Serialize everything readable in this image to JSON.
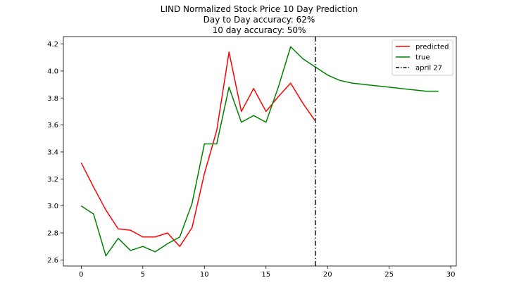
{
  "chart_data": {
    "type": "line",
    "title": [
      "LIND Normalized Stock Price 10 Day Prediction",
      "Day to Day accuracy: 62%",
      "10 day accuracy: 50%"
    ],
    "xlabel": "",
    "ylabel": "",
    "xlim": [
      -1.45,
      30.45
    ],
    "ylim": [
      2.555,
      4.255
    ],
    "xticks": [
      0,
      5,
      10,
      15,
      20,
      25,
      30
    ],
    "yticks": [
      2.6,
      2.8,
      3.0,
      3.2,
      3.4,
      3.6,
      3.8,
      4.0,
      4.2
    ],
    "ytick_labels": [
      "2.6",
      "2.8",
      "3.0",
      "3.2",
      "3.4",
      "3.6",
      "3.8",
      "4.0",
      "4.2"
    ],
    "legend_position": "upper right",
    "series": [
      {
        "name": "predicted",
        "color": "#ff0000",
        "x": [
          0,
          1,
          2,
          3,
          4,
          5,
          6,
          7,
          8,
          9,
          10,
          11,
          12,
          13,
          14,
          15,
          16,
          17,
          18,
          19
        ],
        "y": [
          3.32,
          3.14,
          2.97,
          2.83,
          2.82,
          2.77,
          2.77,
          2.8,
          2.7,
          2.84,
          3.24,
          3.56,
          4.14,
          3.7,
          3.87,
          3.7,
          3.81,
          3.91,
          3.76,
          3.63
        ]
      },
      {
        "name": "true",
        "color": "#008000",
        "x": [
          0,
          1,
          2,
          3,
          4,
          5,
          6,
          7,
          8,
          9,
          10,
          11,
          12,
          13,
          14,
          15,
          16,
          17,
          18,
          19,
          20,
          21,
          22,
          23,
          24,
          25,
          26,
          27,
          28,
          29
        ],
        "y": [
          3.0,
          2.94,
          2.63,
          2.76,
          2.67,
          2.7,
          2.66,
          2.72,
          2.77,
          3.02,
          3.46,
          3.46,
          3.88,
          3.62,
          3.67,
          3.62,
          3.88,
          4.18,
          4.09,
          4.03,
          3.97,
          3.93,
          3.91,
          3.9,
          3.89,
          3.88,
          3.87,
          3.86,
          3.85,
          3.85
        ]
      }
    ],
    "vline": {
      "name": "april 27",
      "x": 19,
      "color": "#000000",
      "style": "dashdot"
    }
  }
}
